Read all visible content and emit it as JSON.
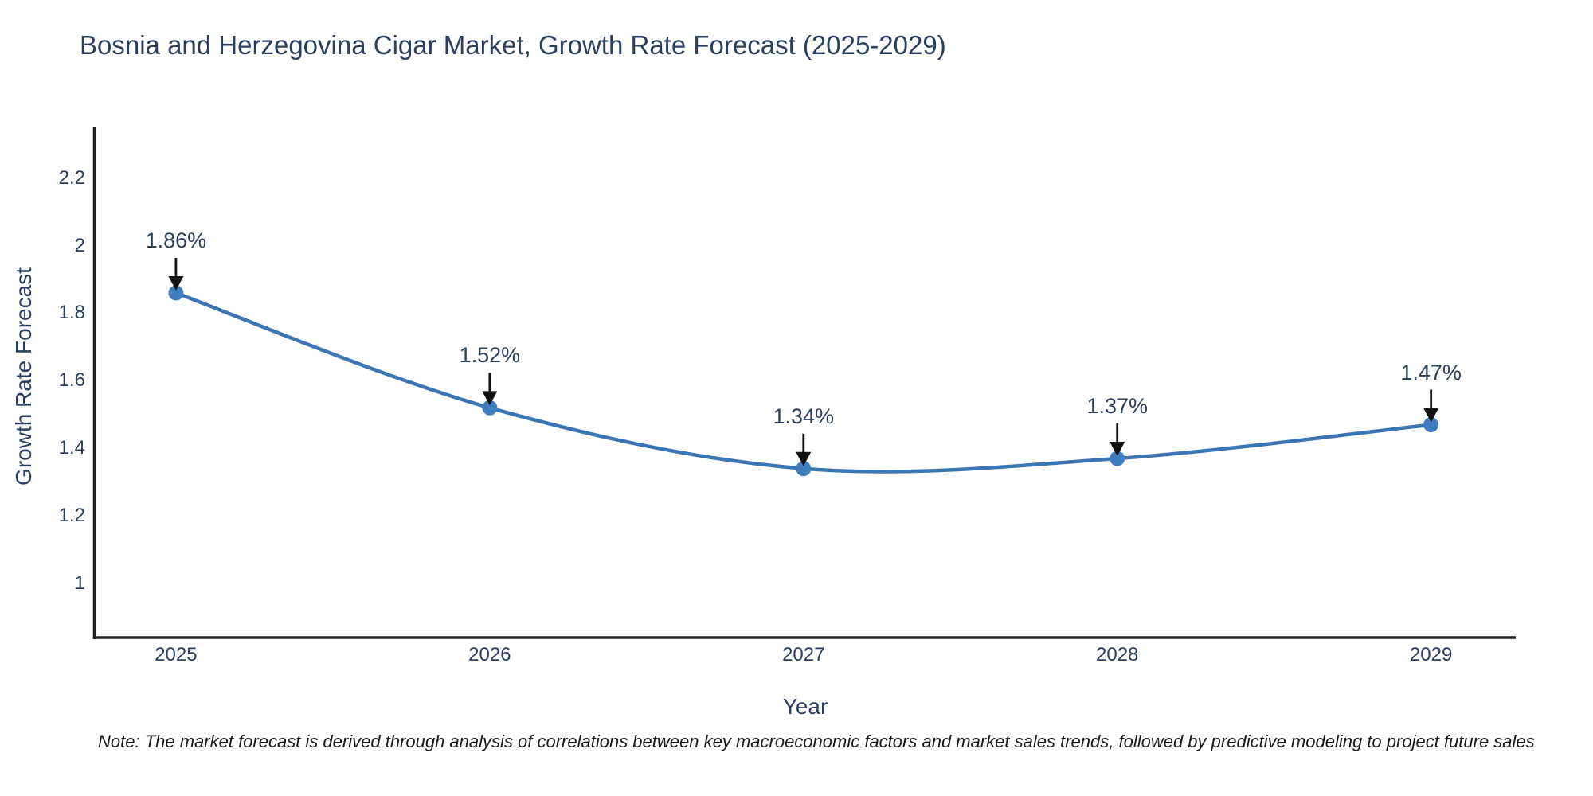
{
  "note": {
    "text": "Note: The market forecast is derived through analysis of correlations between key macroeconomic factors and market sales trends, followed by predictive modeling to project future sales"
  },
  "chart_data": {
    "type": "line",
    "title": "Bosnia and Herzegovina Cigar Market, Growth Rate Forecast (2025-2029)",
    "xlabel": "Year",
    "ylabel": "Growth Rate Forecast",
    "x": [
      2025,
      2026,
      2027,
      2028,
      2029
    ],
    "series": [
      {
        "name": "Growth Rate Forecast",
        "values": [
          1.86,
          1.52,
          1.34,
          1.37,
          1.47
        ]
      }
    ],
    "point_labels": [
      "1.86%",
      "1.52%",
      "1.34%",
      "1.37%",
      "1.47%"
    ],
    "line_shape": "spline",
    "markers": true,
    "grid": false,
    "legend": "none",
    "xlim": [
      2024.74,
      2029.27
    ],
    "ylim": [
      0.84,
      2.35
    ],
    "xticks": {
      "values": [
        2025,
        2026,
        2027,
        2028,
        2029
      ],
      "labels": [
        "2025",
        "2026",
        "2027",
        "2028",
        "2029"
      ]
    },
    "yticks": {
      "values": [
        1,
        1.2,
        1.4,
        1.6,
        1.8,
        2,
        2.2
      ],
      "labels": [
        "1",
        "1.2",
        "1.4",
        "1.6",
        "1.8",
        "2",
        "2.2"
      ]
    },
    "colors": {
      "line": "#3b76b2",
      "marker": "#3e7dbe",
      "axis": "#222222",
      "arrow": "#111111",
      "text": "#2a3f5f",
      "note_text": "#1a1a1a",
      "background": "#ffffff"
    }
  }
}
